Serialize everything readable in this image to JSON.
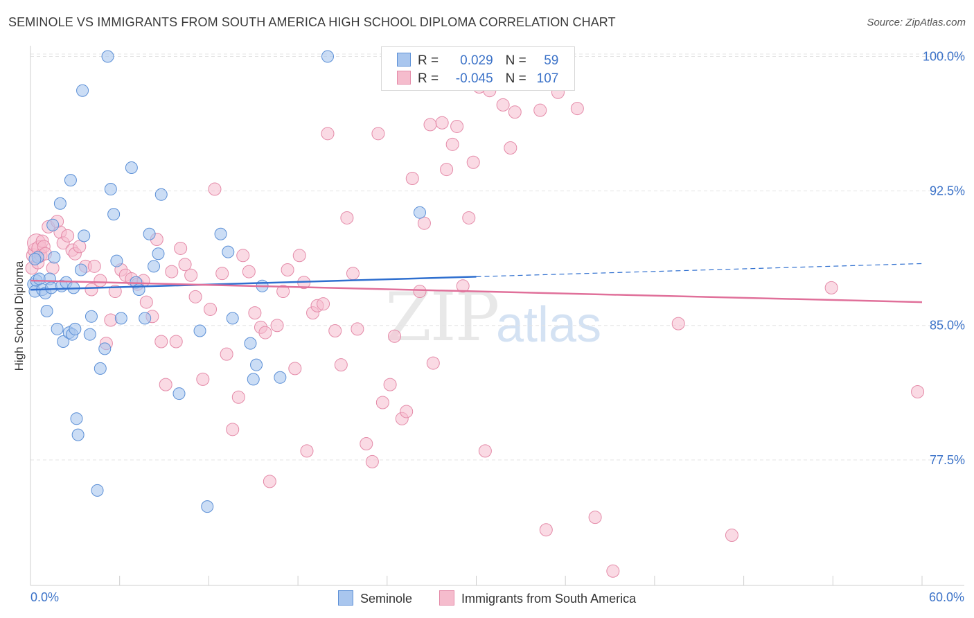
{
  "header": {
    "title": "SEMINOLE VS IMMIGRANTS FROM SOUTH AMERICA HIGH SCHOOL DIPLOMA CORRELATION CHART",
    "source": "Source: ZipAtlas.com"
  },
  "watermark": {
    "zip": "ZIP",
    "atlas": "atlas"
  },
  "legend_top": {
    "rows": [
      {
        "r_label": "R =",
        "r_value": "0.029",
        "n_label": "N =",
        "n_value": "59"
      },
      {
        "r_label": "R =",
        "r_value": "-0.045",
        "n_label": "N =",
        "n_value": "107"
      }
    ]
  },
  "legend_bottom": {
    "series1": "Seminole",
    "series2": "Immigrants from South America"
  },
  "colors": {
    "blue_fill": "#a9c6ee",
    "blue_stroke": "#5b8fd6",
    "blue_line": "#2f6fcf",
    "pink_fill": "#f5bccd",
    "pink_stroke": "#e48aa8",
    "pink_line": "#e0709a",
    "axis_label": "#3b72c8",
    "grid": "#e4e4e4"
  },
  "chart_data": {
    "type": "scatter",
    "title": "SEMINOLE VS IMMIGRANTS FROM SOUTH AMERICA HIGH SCHOOL DIPLOMA CORRELATION CHART",
    "xlabel": "",
    "ylabel": "High School Diploma",
    "xlim": [
      0,
      60
    ],
    "ylim": [
      70.5,
      100.6
    ],
    "x_tick_labels": [
      "0.0%",
      "60.0%"
    ],
    "y_ticks": [
      77.5,
      85.0,
      92.5,
      100.0
    ],
    "y_tick_labels": [
      "77.5%",
      "85.0%",
      "92.5%",
      "100.0%"
    ],
    "grid": true,
    "legend": "top-center",
    "series": [
      {
        "name": "Seminole",
        "r": 0.029,
        "n": 59,
        "trend": {
          "x0": 0,
          "y0": 86.99,
          "x1": 60,
          "y1": 88.45,
          "solid_until": 30
        },
        "points": [
          [
            0.2,
            87.3
          ],
          [
            0.4,
            87.5
          ],
          [
            0.3,
            86.9
          ],
          [
            0.5,
            88.8
          ],
          [
            0.6,
            87.6
          ],
          [
            0.8,
            87.0
          ],
          [
            1.0,
            86.8
          ],
          [
            1.1,
            85.8
          ],
          [
            1.3,
            87.6
          ],
          [
            1.4,
            87.1
          ],
          [
            1.5,
            90.6
          ],
          [
            1.6,
            88.8
          ],
          [
            1.8,
            84.8
          ],
          [
            2.0,
            91.8
          ],
          [
            2.1,
            87.2
          ],
          [
            2.2,
            84.1
          ],
          [
            2.4,
            87.4
          ],
          [
            2.6,
            84.6
          ],
          [
            2.7,
            93.1
          ],
          [
            2.8,
            84.5
          ],
          [
            2.9,
            87.1
          ],
          [
            3.0,
            84.8
          ],
          [
            3.1,
            79.8
          ],
          [
            3.2,
            78.9
          ],
          [
            3.4,
            88.1
          ],
          [
            3.5,
            98.1
          ],
          [
            3.6,
            90.0
          ],
          [
            4.0,
            84.5
          ],
          [
            4.1,
            85.5
          ],
          [
            4.5,
            75.8
          ],
          [
            4.7,
            82.6
          ],
          [
            5.0,
            83.7
          ],
          [
            5.2,
            100.0
          ],
          [
            5.4,
            92.6
          ],
          [
            5.6,
            91.2
          ],
          [
            5.8,
            88.6
          ],
          [
            6.1,
            85.4
          ],
          [
            6.8,
            93.8
          ],
          [
            7.1,
            87.4
          ],
          [
            7.3,
            87.0
          ],
          [
            7.7,
            85.4
          ],
          [
            8.0,
            90.1
          ],
          [
            8.3,
            88.3
          ],
          [
            8.6,
            89.0
          ],
          [
            8.8,
            92.3
          ],
          [
            10.0,
            81.2
          ],
          [
            11.4,
            84.7
          ],
          [
            11.9,
            74.9
          ],
          [
            12.8,
            90.1
          ],
          [
            13.3,
            89.1
          ],
          [
            13.6,
            85.4
          ],
          [
            14.8,
            84.0
          ],
          [
            15.0,
            82.0
          ],
          [
            15.2,
            82.8
          ],
          [
            15.6,
            87.2
          ],
          [
            16.8,
            82.1
          ],
          [
            20.0,
            100.0
          ],
          [
            26.2,
            91.3
          ],
          [
            0.3,
            88.7
          ]
        ]
      },
      {
        "name": "Immigrants from South America",
        "r": -0.045,
        "n": 107,
        "trend": {
          "x0": 0,
          "y0": 87.5,
          "x1": 60,
          "y1": 86.3
        },
        "points": [
          [
            0.1,
            88.2
          ],
          [
            0.2,
            88.9
          ],
          [
            0.3,
            89.2
          ],
          [
            0.4,
            89.6
          ],
          [
            0.5,
            88.5
          ],
          [
            0.6,
            89.3
          ],
          [
            0.7,
            88.9
          ],
          [
            0.8,
            89.7
          ],
          [
            0.9,
            89.4
          ],
          [
            1.0,
            89.0
          ],
          [
            1.2,
            90.5
          ],
          [
            1.5,
            88.2
          ],
          [
            1.8,
            90.8
          ],
          [
            2.0,
            90.2
          ],
          [
            2.2,
            89.6
          ],
          [
            2.5,
            90.0
          ],
          [
            2.8,
            89.2
          ],
          [
            3.0,
            89.0
          ],
          [
            3.3,
            89.4
          ],
          [
            3.7,
            88.3
          ],
          [
            4.1,
            87.0
          ],
          [
            4.3,
            88.3
          ],
          [
            4.7,
            87.5
          ],
          [
            5.1,
            84.0
          ],
          [
            5.4,
            85.3
          ],
          [
            5.7,
            86.9
          ],
          [
            6.1,
            88.1
          ],
          [
            6.4,
            87.8
          ],
          [
            6.8,
            87.6
          ],
          [
            7.2,
            87.3
          ],
          [
            7.6,
            87.5
          ],
          [
            7.8,
            86.3
          ],
          [
            8.2,
            85.5
          ],
          [
            8.5,
            89.8
          ],
          [
            8.8,
            84.1
          ],
          [
            9.1,
            81.7
          ],
          [
            9.5,
            88.0
          ],
          [
            9.8,
            84.1
          ],
          [
            10.1,
            89.3
          ],
          [
            10.4,
            88.4
          ],
          [
            10.8,
            87.8
          ],
          [
            11.1,
            86.6
          ],
          [
            11.6,
            82.0
          ],
          [
            12.1,
            85.9
          ],
          [
            12.4,
            92.6
          ],
          [
            12.9,
            87.9
          ],
          [
            13.2,
            83.4
          ],
          [
            13.6,
            79.2
          ],
          [
            14.0,
            81.0
          ],
          [
            14.3,
            88.9
          ],
          [
            14.7,
            88.0
          ],
          [
            15.1,
            85.7
          ],
          [
            15.5,
            84.9
          ],
          [
            15.8,
            84.6
          ],
          [
            16.1,
            76.3
          ],
          [
            16.6,
            85.0
          ],
          [
            17.0,
            86.9
          ],
          [
            17.3,
            88.1
          ],
          [
            17.8,
            82.6
          ],
          [
            18.1,
            88.9
          ],
          [
            18.4,
            87.4
          ],
          [
            18.6,
            78.0
          ],
          [
            19.0,
            85.7
          ],
          [
            19.3,
            86.1
          ],
          [
            19.7,
            86.2
          ],
          [
            20.0,
            95.7
          ],
          [
            20.5,
            84.7
          ],
          [
            20.9,
            82.8
          ],
          [
            21.3,
            91.0
          ],
          [
            21.7,
            87.9
          ],
          [
            22.0,
            84.8
          ],
          [
            22.6,
            78.4
          ],
          [
            23.0,
            77.4
          ],
          [
            23.4,
            95.7
          ],
          [
            23.7,
            80.7
          ],
          [
            24.2,
            81.7
          ],
          [
            24.5,
            84.4
          ],
          [
            25.0,
            79.8
          ],
          [
            25.3,
            80.2
          ],
          [
            25.7,
            93.2
          ],
          [
            26.2,
            86.9
          ],
          [
            26.5,
            90.7
          ],
          [
            26.9,
            96.2
          ],
          [
            27.1,
            82.9
          ],
          [
            27.7,
            96.3
          ],
          [
            28.0,
            93.7
          ],
          [
            28.4,
            95.1
          ],
          [
            28.7,
            96.1
          ],
          [
            29.1,
            87.2
          ],
          [
            29.5,
            91.0
          ],
          [
            29.8,
            94.1
          ],
          [
            30.2,
            98.3
          ],
          [
            30.6,
            78.0
          ],
          [
            30.9,
            98.1
          ],
          [
            31.8,
            97.3
          ],
          [
            32.3,
            94.9
          ],
          [
            32.6,
            96.9
          ],
          [
            34.3,
            97.0
          ],
          [
            34.7,
            73.6
          ],
          [
            35.5,
            98.0
          ],
          [
            36.8,
            97.1
          ],
          [
            38.0,
            74.3
          ],
          [
            39.2,
            71.3
          ],
          [
            43.6,
            85.1
          ],
          [
            47.2,
            73.3
          ],
          [
            53.9,
            87.1
          ],
          [
            59.7,
            81.3
          ]
        ]
      }
    ]
  }
}
